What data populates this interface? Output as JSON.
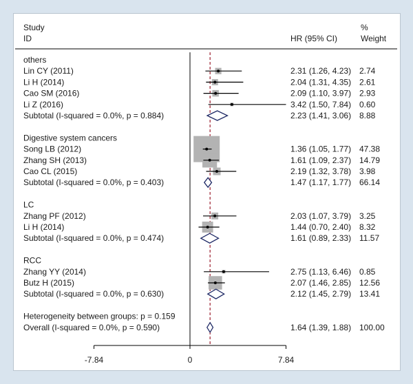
{
  "header": {
    "study": "Study",
    "id": "ID",
    "hr": "HR (95% CI)",
    "pct": "%",
    "weight": "Weight"
  },
  "chart_data": {
    "type": "forest",
    "x_ticks": [
      -7.84,
      0,
      7.84
    ],
    "x_tick_labels": [
      "-7.84",
      "0",
      "7.84"
    ],
    "xlim": [
      -7.84,
      7.84
    ],
    "null_line": 0,
    "overall_line": 1.64,
    "groups": [
      {
        "name": "others",
        "studies": [
          {
            "label": "Lin CY (2011)",
            "hr": 2.31,
            "lo": 1.26,
            "hi": 4.23,
            "ci_text": "2.31 (1.26, 4.23)",
            "weight": "2.74"
          },
          {
            "label": "Li H (2014)",
            "hr": 2.04,
            "lo": 1.31,
            "hi": 4.35,
            "ci_text": "2.04 (1.31, 4.35)",
            "weight": "2.61"
          },
          {
            "label": "Cao SM (2016)",
            "hr": 2.09,
            "lo": 1.1,
            "hi": 3.97,
            "ci_text": "2.09 (1.10, 3.97)",
            "weight": "2.93"
          },
          {
            "label": "Li Z (2016)",
            "hr": 3.42,
            "lo": 1.5,
            "hi": 7.84,
            "ci_text": "3.42 (1.50, 7.84)",
            "weight": "0.60"
          }
        ],
        "subtotal": {
          "label": "Subtotal  (I-squared = 0.0%, p = 0.884)",
          "hr": 2.23,
          "lo": 1.41,
          "hi": 3.06,
          "ci_text": "2.23 (1.41, 3.06)",
          "weight": "8.88"
        }
      },
      {
        "name": "Digestive system cancers",
        "studies": [
          {
            "label": "Song LB (2012)",
            "hr": 1.36,
            "lo": 1.05,
            "hi": 1.77,
            "ci_text": "1.36 (1.05, 1.77)",
            "weight": "47.38"
          },
          {
            "label": "Zhang SH (2013)",
            "hr": 1.61,
            "lo": 1.09,
            "hi": 2.37,
            "ci_text": "1.61 (1.09, 2.37)",
            "weight": "14.79"
          },
          {
            "label": "Cao CL (2015)",
            "hr": 2.19,
            "lo": 1.32,
            "hi": 3.78,
            "ci_text": "2.19 (1.32, 3.78)",
            "weight": "3.98"
          }
        ],
        "subtotal": {
          "label": "Subtotal  (I-squared = 0.0%, p = 0.403)",
          "hr": 1.47,
          "lo": 1.17,
          "hi": 1.77,
          "ci_text": "1.47 (1.17, 1.77)",
          "weight": "66.14"
        }
      },
      {
        "name": "LC",
        "studies": [
          {
            "label": "Zhang PF (2012)",
            "hr": 2.03,
            "lo": 1.07,
            "hi": 3.79,
            "ci_text": "2.03 (1.07, 3.79)",
            "weight": "3.25"
          },
          {
            "label": "Li H (2014)",
            "hr": 1.44,
            "lo": 0.7,
            "hi": 2.4,
            "ci_text": "1.44 (0.70, 2.40)",
            "weight": "8.32"
          }
        ],
        "subtotal": {
          "label": "Subtotal  (I-squared = 0.0%, p = 0.474)",
          "hr": 1.61,
          "lo": 0.89,
          "hi": 2.33,
          "ci_text": "1.61 (0.89, 2.33)",
          "weight": "11.57"
        }
      },
      {
        "name": "RCC",
        "studies": [
          {
            "label": "Zhang YY (2014)",
            "hr": 2.75,
            "lo": 1.13,
            "hi": 6.46,
            "ci_text": "2.75 (1.13, 6.46)",
            "weight": "0.85"
          },
          {
            "label": "Butz H (2015)",
            "hr": 2.07,
            "lo": 1.46,
            "hi": 2.85,
            "ci_text": "2.07 (1.46, 2.85)",
            "weight": "12.56"
          }
        ],
        "subtotal": {
          "label": "Subtotal  (I-squared = 0.0%, p = 0.630)",
          "hr": 2.12,
          "lo": 1.45,
          "hi": 2.79,
          "ci_text": "2.12 (1.45, 2.79)",
          "weight": "13.41"
        }
      }
    ],
    "heterogeneity": "Heterogeneity between groups: p = 0.159",
    "overall": {
      "label": "Overall  (I-squared = 0.0%, p = 0.590)",
      "hr": 1.64,
      "lo": 1.39,
      "hi": 1.88,
      "ci_text": "1.64 (1.39, 1.88)",
      "weight": "100.00"
    },
    "colors": {
      "background": "#d9e4ee",
      "plot": "#ffffff",
      "box": "#b3b3b3",
      "diamond": "#1f2a66",
      "overall_line": "#9b1c2c",
      "line": "#000000"
    }
  }
}
